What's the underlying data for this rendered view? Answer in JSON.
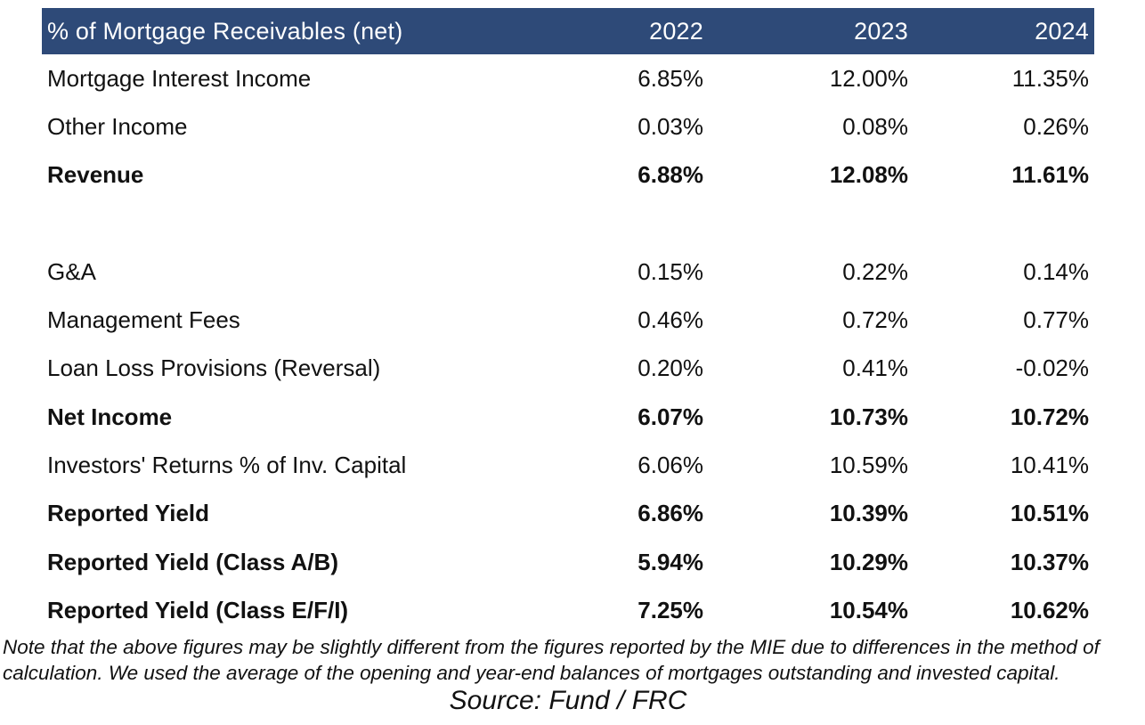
{
  "table": {
    "header": {
      "label": "% of Mortgage Receivables (net)",
      "years": [
        "2022",
        "2023",
        "2024"
      ]
    },
    "rows": [
      {
        "label": "Mortgage Interest Income",
        "values": [
          "6.85%",
          "12.00%",
          "11.35%"
        ],
        "bold": false
      },
      {
        "label": "Other Income",
        "values": [
          "0.03%",
          "0.08%",
          "0.26%"
        ],
        "bold": false
      },
      {
        "label": "Revenue",
        "values": [
          "6.88%",
          "12.08%",
          "11.61%"
        ],
        "bold": true
      },
      {
        "label": "",
        "values": [
          "",
          "",
          ""
        ],
        "bold": false,
        "spacer": true
      },
      {
        "label": "G&A",
        "values": [
          "0.15%",
          "0.22%",
          "0.14%"
        ],
        "bold": false
      },
      {
        "label": "Management Fees",
        "values": [
          "0.46%",
          "0.72%",
          "0.77%"
        ],
        "bold": false
      },
      {
        "label": "Loan Loss Provisions (Reversal)",
        "values": [
          "0.20%",
          "0.41%",
          "-0.02%"
        ],
        "bold": false
      },
      {
        "label": "Net Income",
        "values": [
          "6.07%",
          "10.73%",
          "10.72%"
        ],
        "bold": true
      },
      {
        "label": "Investors' Returns % of Inv. Capital",
        "values": [
          "6.06%",
          "10.59%",
          "10.41%"
        ],
        "bold": false
      },
      {
        "label": "Reported Yield",
        "values": [
          "6.86%",
          "10.39%",
          "10.51%"
        ],
        "bold": true
      },
      {
        "label": "Reported Yield (Class A/B)",
        "values": [
          "5.94%",
          "10.29%",
          "10.37%"
        ],
        "bold": true
      },
      {
        "label": "Reported Yield (Class E/F/I)",
        "values": [
          "7.25%",
          "10.54%",
          "10.62%"
        ],
        "bold": true
      }
    ]
  },
  "note": "Note that the above figures may be slightly different from the figures reported by the MIE due to differences in the method of calculation. We used the average of the opening and year-end balances of mortgages outstanding and invested capital.",
  "source": "Source: Fund / FRC",
  "colors": {
    "header_bg": "#2e4a78",
    "header_text": "#ffffff",
    "body_text": "#111111"
  }
}
